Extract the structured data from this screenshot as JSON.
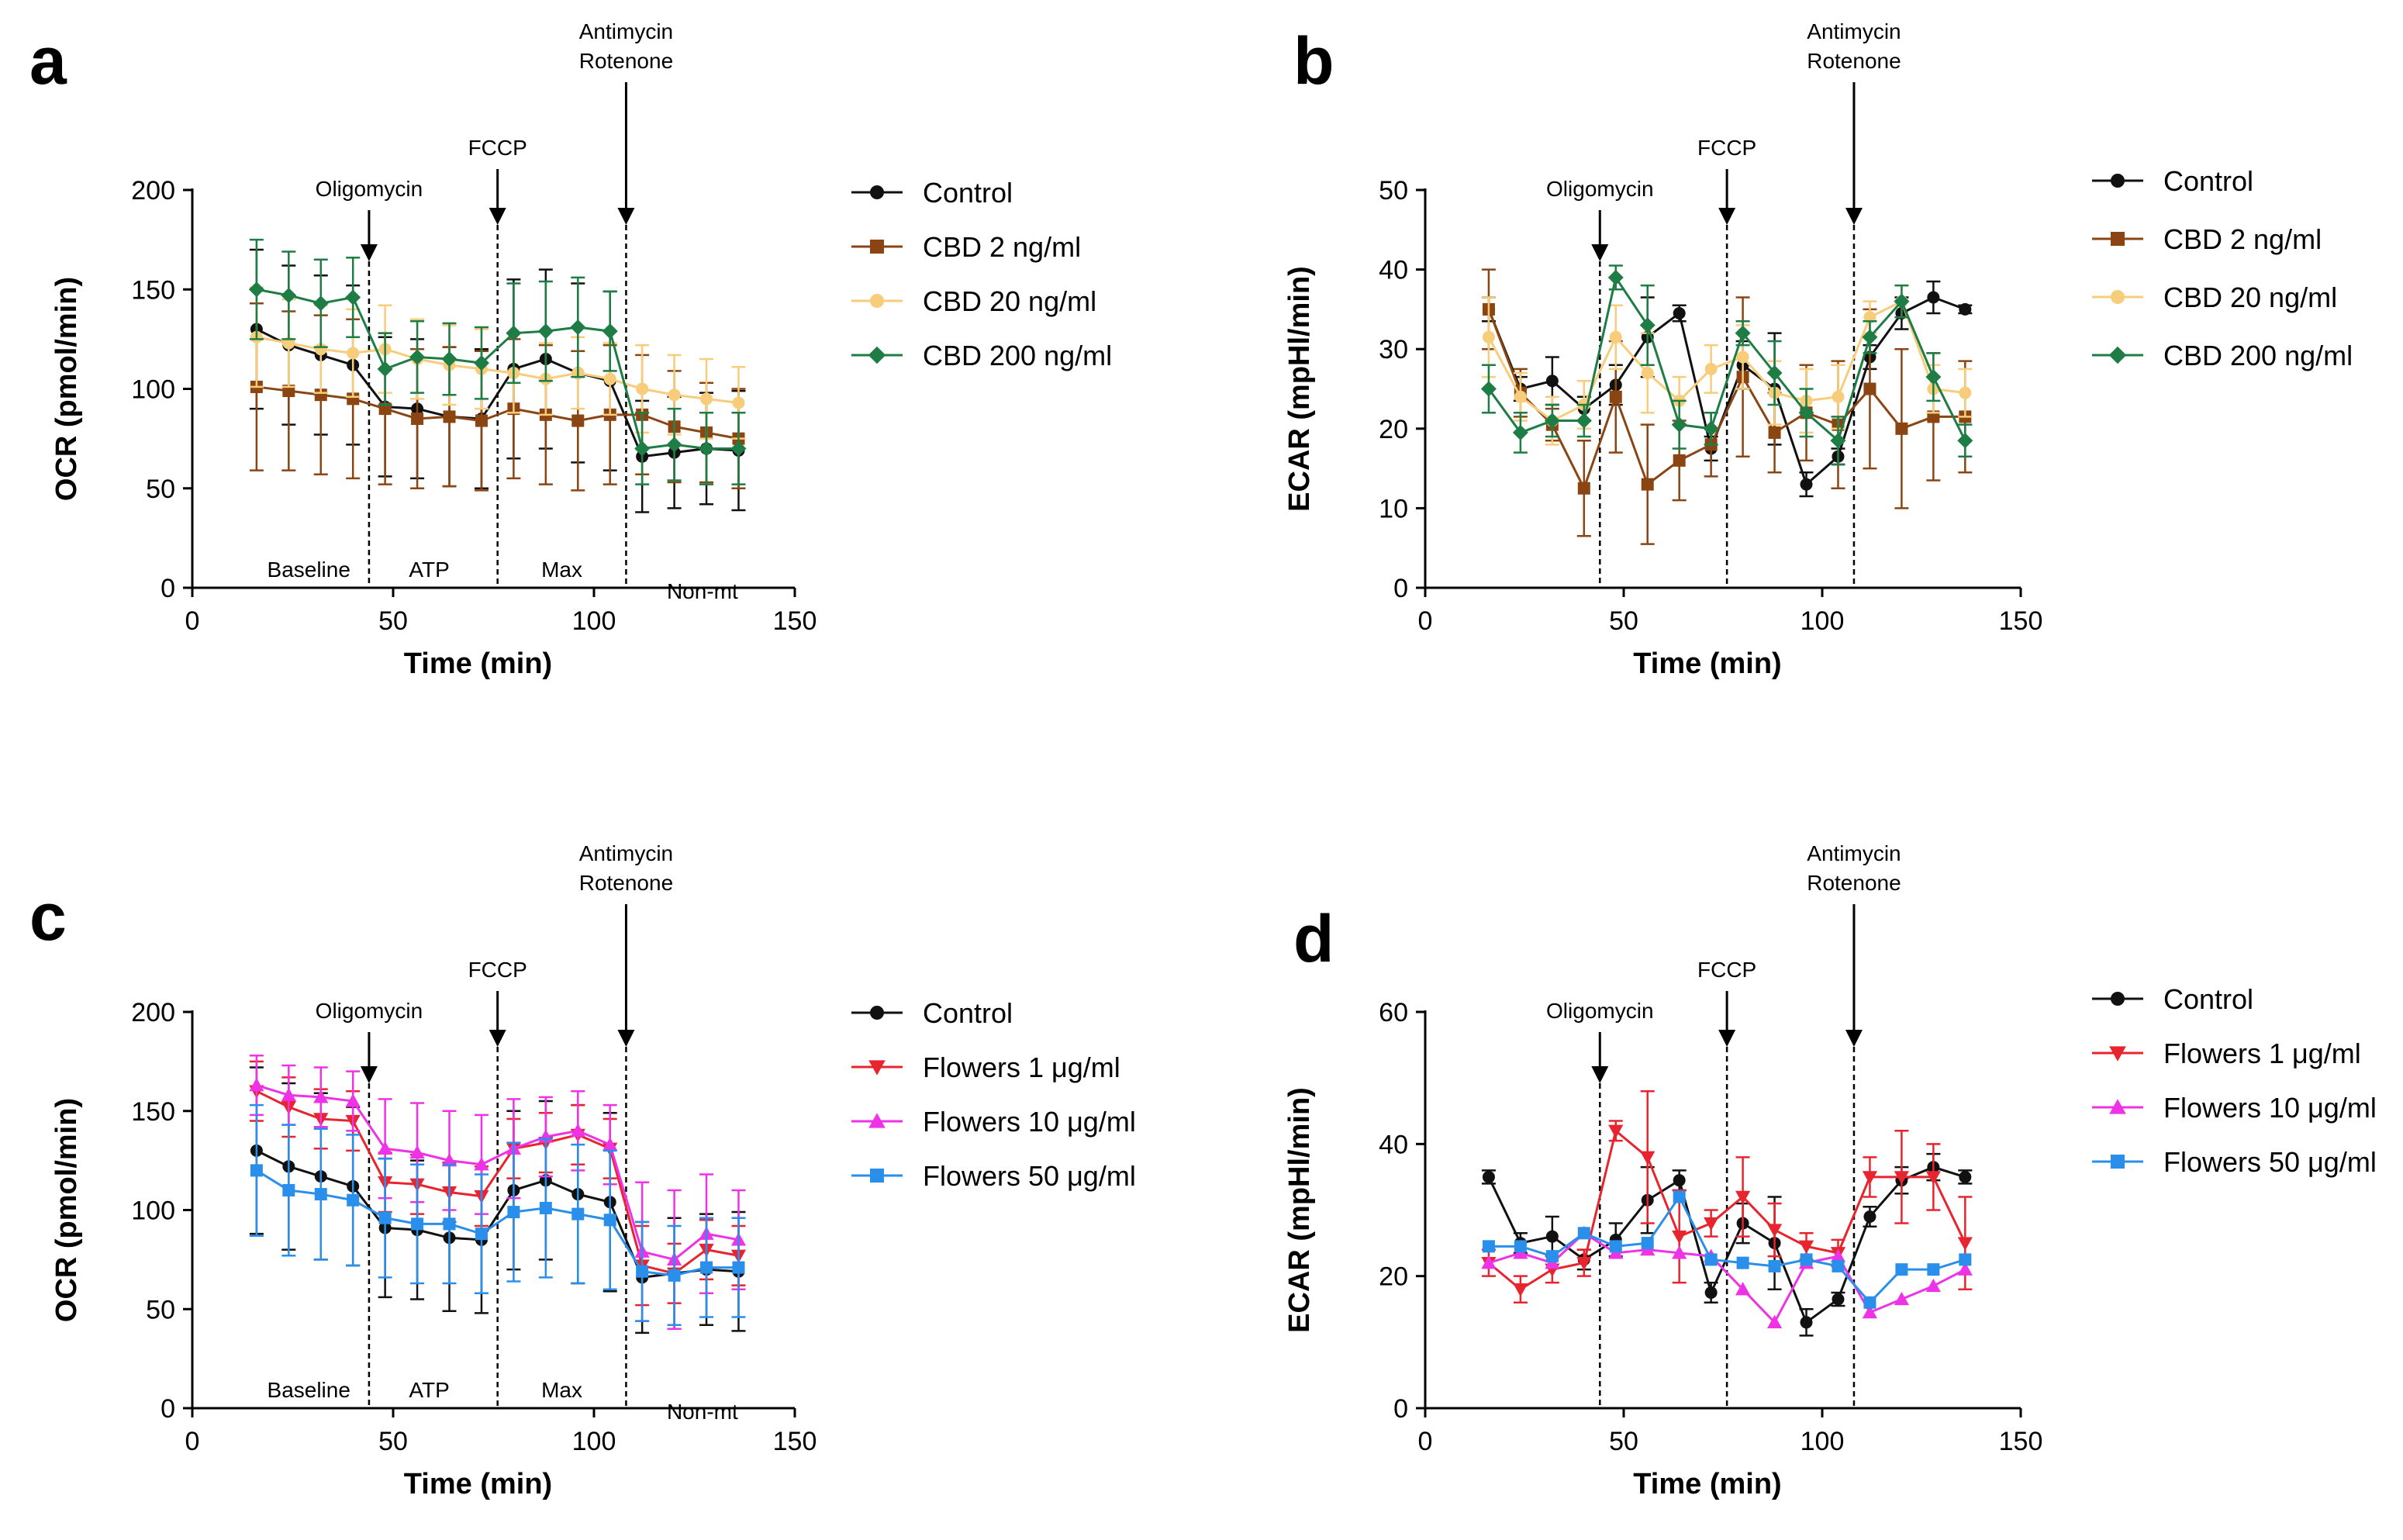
{
  "chart_data": [
    {
      "panel": "a",
      "type": "line",
      "xlabel": "Time (min)",
      "ylabel": "OCR (pmol/min)",
      "xlim": [
        0,
        150
      ],
      "ylim": [
        0,
        200
      ],
      "xticks": [
        0,
        50,
        100,
        150
      ],
      "yticks": [
        0,
        50,
        100,
        150,
        200
      ],
      "x": [
        16,
        24,
        32,
        40,
        48,
        56,
        64,
        72,
        80,
        88,
        96,
        104,
        112,
        120,
        128,
        136
      ],
      "injections": [
        {
          "x": 44,
          "lines": [
            "Oligomycin"
          ]
        },
        {
          "x": 76,
          "lines": [
            "FCCP"
          ]
        },
        {
          "x": 108,
          "lines": [
            "Antimycin",
            "Rotenone"
          ]
        }
      ],
      "regions": [
        {
          "label": "Baseline",
          "x": 29,
          "row": 0
        },
        {
          "label": "ATP",
          "x": 59,
          "row": 0
        },
        {
          "label": "Max",
          "x": 92,
          "row": 0
        },
        {
          "label": "Non-mt",
          "x": 127,
          "row": 1
        }
      ],
      "series": [
        {
          "name": "Control",
          "color": "#111111",
          "marker": "circle",
          "values": [
            130,
            122,
            117,
            112,
            91,
            90,
            86,
            85,
            110,
            115,
            108,
            104,
            66,
            68,
            70,
            69
          ],
          "errors": [
            40,
            40,
            40,
            40,
            35,
            35,
            35,
            35,
            45,
            45,
            45,
            45,
            28,
            28,
            28,
            30
          ]
        },
        {
          "name": "CBD 2 ng/ml",
          "color": "#8B4513",
          "marker": "square",
          "values": [
            101,
            99,
            97,
            95,
            90,
            85,
            86,
            84,
            90,
            87,
            84,
            87,
            87,
            81,
            78,
            75
          ],
          "errors": [
            42,
            40,
            40,
            40,
            38,
            35,
            35,
            35,
            35,
            35,
            35,
            35,
            30,
            28,
            25,
            25
          ]
        },
        {
          "name": "CBD 20 ng/ml",
          "color": "#F7CD7B",
          "marker": "circle",
          "values": [
            126,
            123,
            120,
            118,
            120,
            115,
            112,
            110,
            108,
            105,
            108,
            105,
            100,
            97,
            95,
            93
          ],
          "errors": [
            25,
            22,
            22,
            22,
            22,
            20,
            20,
            20,
            20,
            18,
            18,
            18,
            22,
            20,
            20,
            18
          ]
        },
        {
          "name": "CBD 200 ng/ml",
          "color": "#1E7C45",
          "marker": "diamond",
          "values": [
            150,
            147,
            143,
            146,
            110,
            116,
            115,
            113,
            128,
            129,
            131,
            129,
            70,
            72,
            70,
            70
          ],
          "errors": [
            25,
            22,
            22,
            20,
            18,
            18,
            18,
            18,
            25,
            25,
            25,
            20,
            18,
            18,
            18,
            18
          ]
        }
      ]
    },
    {
      "panel": "b",
      "type": "line",
      "xlabel": "Time (min)",
      "ylabel": "ECAR (mpHl/min)",
      "xlim": [
        0,
        150
      ],
      "ylim": [
        0,
        50
      ],
      "xticks": [
        0,
        50,
        100,
        150
      ],
      "yticks": [
        0,
        10,
        20,
        30,
        40,
        50
      ],
      "x": [
        16,
        24,
        32,
        40,
        48,
        56,
        64,
        72,
        80,
        88,
        96,
        104,
        112,
        120,
        128,
        136
      ],
      "injections": [
        {
          "x": 44,
          "lines": [
            "Oligomycin"
          ]
        },
        {
          "x": 76,
          "lines": [
            "FCCP"
          ]
        },
        {
          "x": 108,
          "lines": [
            "Antimycin",
            "Rotenone"
          ]
        }
      ],
      "regions": [],
      "series": [
        {
          "name": "Control",
          "color": "#111111",
          "marker": "circle",
          "values": [
            35,
            25,
            26,
            22.5,
            25.5,
            31.5,
            34.5,
            17.5,
            28,
            25,
            13,
            16.5,
            29,
            34.5,
            36.5,
            35
          ],
          "errors": [
            1.5,
            1.5,
            3,
            1.5,
            2.5,
            5,
            1,
            1.5,
            3,
            7,
            1.5,
            1,
            1.5,
            2,
            2,
            0.5
          ]
        },
        {
          "name": "CBD 2 ng/ml",
          "color": "#8B4513",
          "marker": "square",
          "values": [
            35,
            24.5,
            20.5,
            12.5,
            24,
            13,
            16,
            18,
            26.5,
            19.5,
            22,
            20.5,
            25,
            20,
            21.5,
            21.5
          ],
          "errors": [
            5,
            3,
            2,
            6,
            7,
            7.5,
            5,
            4,
            10,
            5,
            6,
            8,
            10,
            10,
            8,
            7
          ]
        },
        {
          "name": "CBD 20 ng/ml",
          "color": "#F7CD7B",
          "marker": "circle",
          "values": [
            31.5,
            24,
            21,
            23,
            31.5,
            27,
            23.5,
            27.5,
            29,
            24.5,
            23.5,
            24,
            34,
            36,
            25,
            24.5
          ],
          "errors": [
            5,
            3,
            3,
            3,
            4,
            5,
            3,
            3,
            4,
            4,
            4,
            4,
            2,
            2,
            3,
            3
          ]
        },
        {
          "name": "CBD 200 ng/ml",
          "color": "#1E7C45",
          "marker": "diamond",
          "values": [
            25,
            19.5,
            21,
            21,
            39,
            33,
            20.5,
            20,
            32,
            27,
            22,
            18.5,
            31.5,
            36,
            26.5,
            18.5
          ],
          "errors": [
            3,
            2.5,
            2,
            2,
            1.5,
            5,
            3,
            2,
            1.5,
            4,
            3,
            3,
            2,
            2,
            3,
            2
          ]
        }
      ]
    },
    {
      "panel": "c",
      "type": "line",
      "xlabel": "Time (min)",
      "ylabel": "OCR (pmol/min)",
      "xlim": [
        0,
        150
      ],
      "ylim": [
        0,
        200
      ],
      "xticks": [
        0,
        50,
        100,
        150
      ],
      "yticks": [
        0,
        50,
        100,
        150,
        200
      ],
      "x": [
        16,
        24,
        32,
        40,
        48,
        56,
        64,
        72,
        80,
        88,
        96,
        104,
        112,
        120,
        128,
        136
      ],
      "injections": [
        {
          "x": 44,
          "lines": [
            "Oligomycin"
          ]
        },
        {
          "x": 76,
          "lines": [
            "FCCP"
          ]
        },
        {
          "x": 108,
          "lines": [
            "Antimycin",
            "Rotenone"
          ]
        }
      ],
      "regions": [
        {
          "label": "Baseline",
          "x": 29,
          "row": 0
        },
        {
          "label": "ATP",
          "x": 59,
          "row": 0
        },
        {
          "label": "Max",
          "x": 92,
          "row": 0
        },
        {
          "label": "Non-mt",
          "x": 127,
          "row": 1
        }
      ],
      "series": [
        {
          "name": "Control",
          "color": "#111111",
          "marker": "circle",
          "values": [
            130,
            122,
            117,
            112,
            91,
            90,
            86,
            85,
            110,
            115,
            108,
            104,
            66,
            68,
            70,
            69
          ],
          "errors": [
            42,
            42,
            42,
            40,
            35,
            35,
            37,
            37,
            40,
            40,
            45,
            45,
            28,
            28,
            28,
            30
          ]
        },
        {
          "name": "Flowers 1 μg/ml",
          "color": "#E8242E",
          "marker": "triangle-down",
          "values": [
            160,
            152,
            146,
            145,
            114,
            113,
            109,
            107,
            131,
            134,
            138,
            131,
            72,
            68,
            80,
            77
          ],
          "errors": [
            15,
            15,
            15,
            15,
            15,
            15,
            15,
            15,
            15,
            15,
            15,
            15,
            20,
            15,
            15,
            15
          ]
        },
        {
          "name": "Flowers 10 μg/ml",
          "color": "#EE33E6",
          "marker": "triangle-up",
          "values": [
            163,
            158,
            157,
            155,
            131,
            129,
            125,
            123,
            131,
            137,
            140,
            133,
            79,
            75,
            88,
            85
          ],
          "errors": [
            15,
            15,
            15,
            15,
            25,
            25,
            25,
            25,
            25,
            20,
            20,
            20,
            35,
            35,
            30,
            25
          ]
        },
        {
          "name": "Flowers 50 μg/ml",
          "color": "#2A8EEB",
          "marker": "square",
          "values": [
            120,
            110,
            108,
            105,
            96,
            93,
            93,
            88,
            99,
            101,
            98,
            95,
            69,
            67,
            71,
            71
          ],
          "errors": [
            33,
            33,
            33,
            33,
            30,
            30,
            30,
            30,
            35,
            35,
            35,
            35,
            25,
            25,
            25,
            25
          ]
        }
      ]
    },
    {
      "panel": "d",
      "type": "line",
      "xlabel": "Time (min)",
      "ylabel": "ECAR (mpHl/min)",
      "xlim": [
        0,
        150
      ],
      "ylim": [
        0,
        60
      ],
      "xticks": [
        0,
        50,
        100,
        150
      ],
      "yticks": [
        0,
        20,
        40,
        60
      ],
      "x": [
        16,
        24,
        32,
        40,
        48,
        56,
        64,
        72,
        80,
        88,
        96,
        104,
        112,
        120,
        128,
        136
      ],
      "injections": [
        {
          "x": 44,
          "lines": [
            "Oligomycin"
          ]
        },
        {
          "x": 76,
          "lines": [
            "FCCP"
          ]
        },
        {
          "x": 108,
          "lines": [
            "Antimycin",
            "Rotenone"
          ]
        }
      ],
      "regions": [],
      "series": [
        {
          "name": "Control",
          "color": "#111111",
          "marker": "circle",
          "values": [
            35,
            25,
            26,
            22.5,
            25.5,
            31.5,
            34.5,
            17.5,
            28,
            25,
            13,
            16.5,
            29,
            34.5,
            36.5,
            35
          ],
          "errors": [
            1,
            1.5,
            3,
            1.5,
            2.5,
            5,
            1.5,
            1.5,
            3,
            7,
            2,
            1,
            1.5,
            2,
            2,
            1
          ]
        },
        {
          "name": "Flowers 1 μg/ml",
          "color": "#E8242E",
          "marker": "triangle-down",
          "values": [
            22,
            18,
            21,
            22,
            42,
            38,
            26,
            28,
            32,
            27,
            24.5,
            23.5,
            35,
            35,
            35,
            25
          ],
          "errors": [
            2,
            2,
            2,
            2,
            1.5,
            10,
            7,
            2,
            6,
            4,
            2,
            2,
            3,
            7,
            5,
            7
          ]
        },
        {
          "name": "Flowers 10 μg/ml",
          "color": "#EE33E6",
          "marker": "triangle-up",
          "values": [
            22,
            23.5,
            22,
            26.5,
            23.5,
            24,
            23.5,
            23,
            18,
            13,
            22,
            23,
            14.5,
            16.5,
            18.5,
            21
          ]
        },
        {
          "name": "Flowers 50 μg/ml",
          "color": "#2A8EEB",
          "marker": "square",
          "values": [
            24.5,
            24.5,
            23,
            26.5,
            24.5,
            25,
            32,
            22.5,
            22,
            21.5,
            22.5,
            21.5,
            16,
            21,
            21,
            22.5
          ]
        }
      ]
    }
  ]
}
